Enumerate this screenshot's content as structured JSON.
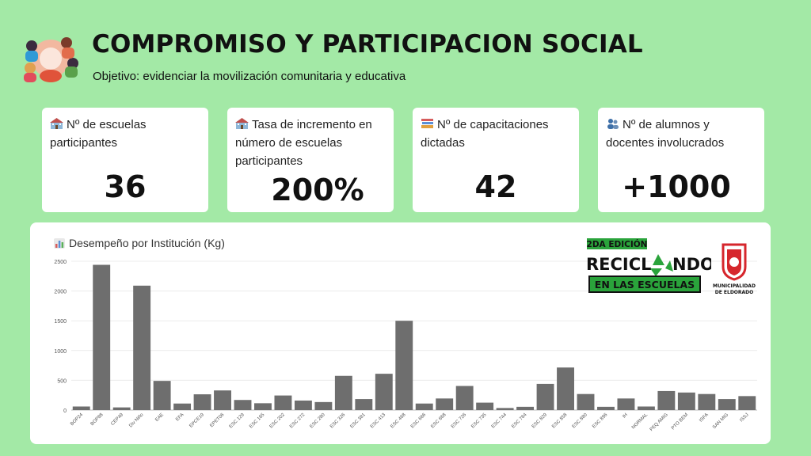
{
  "header": {
    "title": "COMPROMISO Y PARTICIPACION SOCIAL",
    "subtitle": "Objetivo: evidenciar la movilización comunitaria y educativa",
    "illustration_icon": "community-hands-icon"
  },
  "stats": [
    {
      "icon": "school-icon",
      "label": "Nº de escuelas participantes",
      "value": "36"
    },
    {
      "icon": "school-icon",
      "label": "Tasa de incremento en número de escuelas participantes",
      "value": "200%"
    },
    {
      "icon": "books-icon",
      "label": "Nº de capacitaciones dictadas",
      "value": "42"
    },
    {
      "icon": "people-icon",
      "label": "Nº de alumnos y docentes involucrados",
      "value": "+1000"
    }
  ],
  "chart_panel": {
    "title": "Desempeño por Institución (Kg)",
    "title_icon": "bar-chart-icon"
  },
  "logos": {
    "edition": "2DA EDICIÓN",
    "word_left": "RECICL",
    "word_right": "NDO",
    "banner": "EN LAS ESCUELAS",
    "municipality_line1": "MUNICIPALIDAD",
    "municipality_line2": "DE ELDORADO"
  },
  "colors": {
    "background": "#a3e9a6",
    "card": "#ffffff",
    "bar": "#6e6e6e",
    "brand_green": "#2aa33b",
    "brand_red": "#d6262c"
  },
  "chart_data": {
    "type": "bar",
    "title": "Desempeño por Institución (Kg)",
    "xlabel": "",
    "ylabel": "",
    "ylim": [
      0,
      2500
    ],
    "yticks": [
      0,
      500,
      1000,
      1500,
      2000,
      2500
    ],
    "grid": true,
    "categories": [
      "BOP24",
      "BOP88",
      "CEP49",
      "Div Niño",
      "EAE",
      "EFA",
      "EPCE19",
      "EPET06",
      "ESC 129",
      "ESC 165",
      "ESC 202",
      "ESC 272",
      "ESC 280",
      "ESC 326",
      "ESC 381",
      "ESC 413",
      "ESC 468",
      "ESC 666",
      "ESC 668",
      "ESC 726",
      "ESC 735",
      "ESC 744",
      "ESC 764",
      "ESC 829",
      "ESC 858",
      "ESC 880",
      "ESC 896",
      "IH",
      "NORMAL",
      "PEQ AMIG",
      "PTO BEM",
      "ISFA",
      "SAN MIG",
      "ISSJ"
    ],
    "values": [
      60,
      2440,
      45,
      2090,
      490,
      110,
      265,
      330,
      170,
      115,
      245,
      160,
      135,
      575,
      185,
      610,
      1500,
      110,
      195,
      405,
      125,
      35,
      55,
      440,
      715,
      270,
      55,
      195,
      60,
      320,
      295,
      270,
      185,
      235
    ]
  }
}
